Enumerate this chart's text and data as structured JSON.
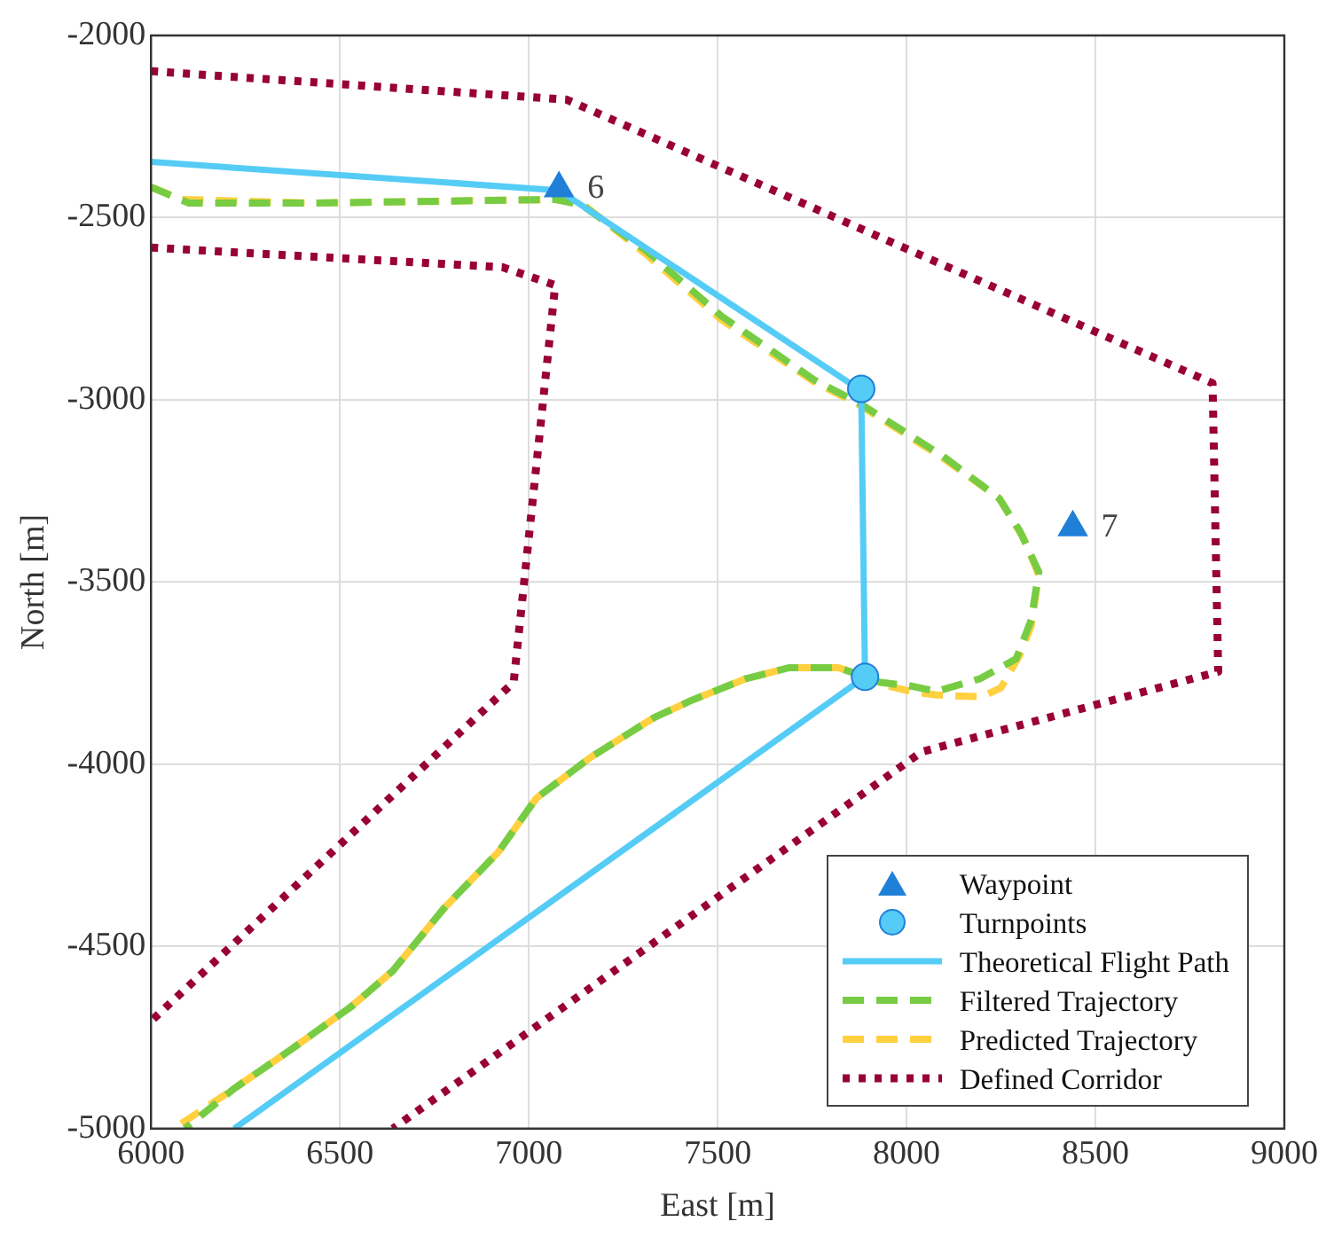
{
  "chart_data": {
    "type": "line",
    "xlabel": "East [m]",
    "ylabel": "North [m]",
    "xlim": [
      6000,
      9000
    ],
    "ylim": [
      -5000,
      -2000
    ],
    "xticks": [
      6000,
      6500,
      7000,
      7500,
      8000,
      8500,
      9000
    ],
    "yticks": [
      -5000,
      -4500,
      -4000,
      -3500,
      -3000,
      -2500,
      -2000
    ],
    "grid": true,
    "legend": "bottom right",
    "annotations": [
      {
        "text": "6",
        "x": 7080,
        "y": -2420
      },
      {
        "text": "7",
        "x": 8440,
        "y": -3350
      }
    ],
    "series": [
      {
        "name": "Waypoint",
        "type": "scatter",
        "marker": "triangle",
        "color": "#2080d8",
        "x": [
          7080,
          8440
        ],
        "values": [
          -2420,
          -3350
        ]
      },
      {
        "name": "Turnpoints",
        "type": "scatter",
        "marker": "circle",
        "color": "#55ccf5",
        "x": [
          7880,
          7890
        ],
        "values": [
          -2970,
          -3760
        ]
      },
      {
        "name": "Theoretical Flight Path",
        "line_style": "solid",
        "color": "#55ccf5",
        "x": [
          6000,
          7080,
          7880,
          7890,
          6220
        ],
        "values": [
          -2347,
          -2425,
          -2975,
          -3760,
          -5000
        ]
      },
      {
        "name": "Filtered Trajectory",
        "line_style": "dashed",
        "color": "#77cc44",
        "x": [
          6000,
          6100,
          6430,
          7070,
          7140,
          7310,
          7510,
          7755,
          7877,
          8097,
          8245,
          8300,
          8350,
          8330,
          8290,
          8195,
          8080,
          8010,
          7930,
          7890,
          7820,
          7690,
          7575,
          7430,
          7330,
          7165,
          7020,
          6920,
          6775,
          6640,
          6530,
          6365,
          6220,
          6090
        ],
        "values": [
          -2416,
          -2460,
          -2460,
          -2450,
          -2465,
          -2590,
          -2770,
          -2945,
          -3010,
          -3155,
          -3270,
          -3360,
          -3472,
          -3604,
          -3711,
          -3765,
          -3800,
          -3785,
          -3775,
          -3760,
          -3735,
          -3735,
          -3765,
          -3825,
          -3873,
          -3980,
          -4093,
          -4240,
          -4396,
          -4567,
          -4665,
          -4787,
          -4890,
          -5000
        ]
      },
      {
        "name": "Predicted Trajectory",
        "line_style": "dashed",
        "color": "#ffd040",
        "x": [
          6000,
          6080,
          6430,
          7070,
          7140,
          7310,
          7510,
          7755,
          7877,
          8097,
          8245,
          8310,
          8350,
          8330,
          8300,
          8250,
          8200,
          8080,
          8010,
          7930,
          7890,
          7820,
          7690,
          7575,
          7430,
          7330,
          7165,
          7020,
          6920,
          6775,
          6640,
          6530,
          6365,
          6220,
          6060
        ],
        "values": [
          -2416,
          -2450,
          -2460,
          -2450,
          -2460,
          -2600,
          -2780,
          -2950,
          -3015,
          -3160,
          -3270,
          -3380,
          -3480,
          -3620,
          -3700,
          -3790,
          -3815,
          -3810,
          -3800,
          -3780,
          -3760,
          -3735,
          -3735,
          -3765,
          -3825,
          -3873,
          -3980,
          -4093,
          -4240,
          -4396,
          -4567,
          -4665,
          -4787,
          -4890,
          -5000
        ]
      },
      {
        "name": "Defined Corridor",
        "line_style": "dotted",
        "color": "#990033",
        "x": [
          6000,
          7100,
          8810,
          8825,
          8040,
          6640
        ],
        "values": [
          -2098,
          -2176,
          -2954,
          -3746,
          -3966,
          -5000
        ]
      },
      {
        "name": null,
        "line_style": "dotted",
        "color": "#990033",
        "x": [
          6000,
          6930,
          7070,
          6960,
          6000
        ],
        "values": [
          -2582,
          -2636,
          -2685,
          -3775,
          -4705
        ]
      }
    ]
  }
}
